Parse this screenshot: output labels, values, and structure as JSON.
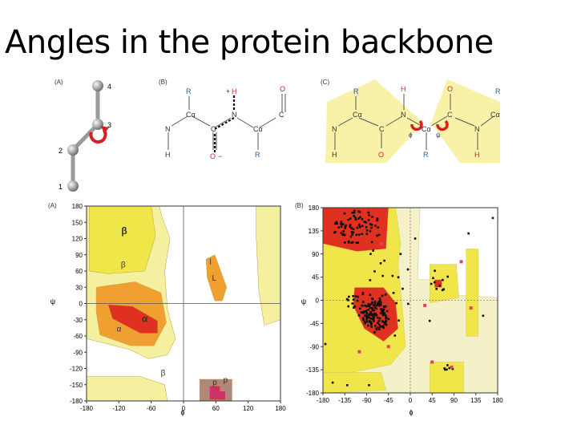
{
  "slide": {
    "title": "Angles in the protein backbone"
  },
  "panel_a": {
    "label": "(A)",
    "atoms": [
      "4",
      "3",
      "2",
      "1"
    ]
  },
  "panel_b": {
    "label": "(B)",
    "atoms": {
      "r1": "R",
      "ca1": "Cα",
      "n1": "N",
      "h1": "H",
      "c1": "C",
      "o1": "O",
      "h2": "H",
      "plus": "+",
      "n2": "N",
      "o_minus": "O",
      "minus": "−",
      "ca2": "Cα",
      "r2": "R",
      "o2": "O",
      "c2": "C"
    }
  },
  "panel_c": {
    "label": "(C)",
    "atoms": {
      "r1": "R",
      "ca1": "Cα",
      "n1": "N",
      "h1": "H",
      "c1": "C",
      "o1": "O",
      "h2": "H",
      "n2": "N",
      "ca2": "Cα",
      "r2": "R",
      "phi": "ϕ",
      "psi": "ψ",
      "o2": "O",
      "c2": "C",
      "n3": "N",
      "h3": "H",
      "r3": "R",
      "ca3": "Cα"
    }
  },
  "colors": {
    "pale_yellow": "#f5efa0",
    "yellow": "#f0e64a",
    "orange": "#f0a030",
    "red": "#e03020",
    "brown": "#b08878",
    "magenta": "#d0306a",
    "pink": "#e84060"
  },
  "chart_data": [
    {
      "type": "heatmap",
      "panel_label": "(A)",
      "xlabel": "ϕ",
      "ylabel": "ψ",
      "xlim": [
        -180,
        180
      ],
      "ylim": [
        -180,
        180
      ],
      "xticks": [
        -180,
        -120,
        -60,
        0,
        60,
        120,
        180
      ],
      "yticks": [
        180,
        150,
        120,
        90,
        60,
        30,
        0,
        -30,
        -60,
        -90,
        -120,
        -150,
        -180
      ],
      "region_labels": [
        {
          "text": "β",
          "x": -110,
          "y": 128
        },
        {
          "text": "β",
          "x": -112,
          "y": 67
        },
        {
          "text": "α",
          "x": -72,
          "y": -34
        },
        {
          "text": "α",
          "x": -120,
          "y": -52
        },
        {
          "text": "L",
          "x": 57,
          "y": 42
        },
        {
          "text": "l",
          "x": 50,
          "y": 72
        },
        {
          "text": "β",
          "x": -38,
          "y": -133
        },
        {
          "text": "p",
          "x": 58,
          "y": -150
        },
        {
          "text": "p",
          "x": 78,
          "y": -146
        }
      ]
    },
    {
      "type": "scatter",
      "panel_label": "(B)",
      "xlabel": "ϕ",
      "ylabel": "ψ",
      "xlim": [
        -180,
        180
      ],
      "ylim": [
        -180,
        180
      ],
      "xticks": [
        -180,
        -135,
        -90,
        -45,
        0,
        45,
        90,
        135,
        180
      ],
      "yticks": [
        180,
        135,
        90,
        45,
        0,
        -45,
        -90,
        -135,
        -180
      ]
    }
  ]
}
